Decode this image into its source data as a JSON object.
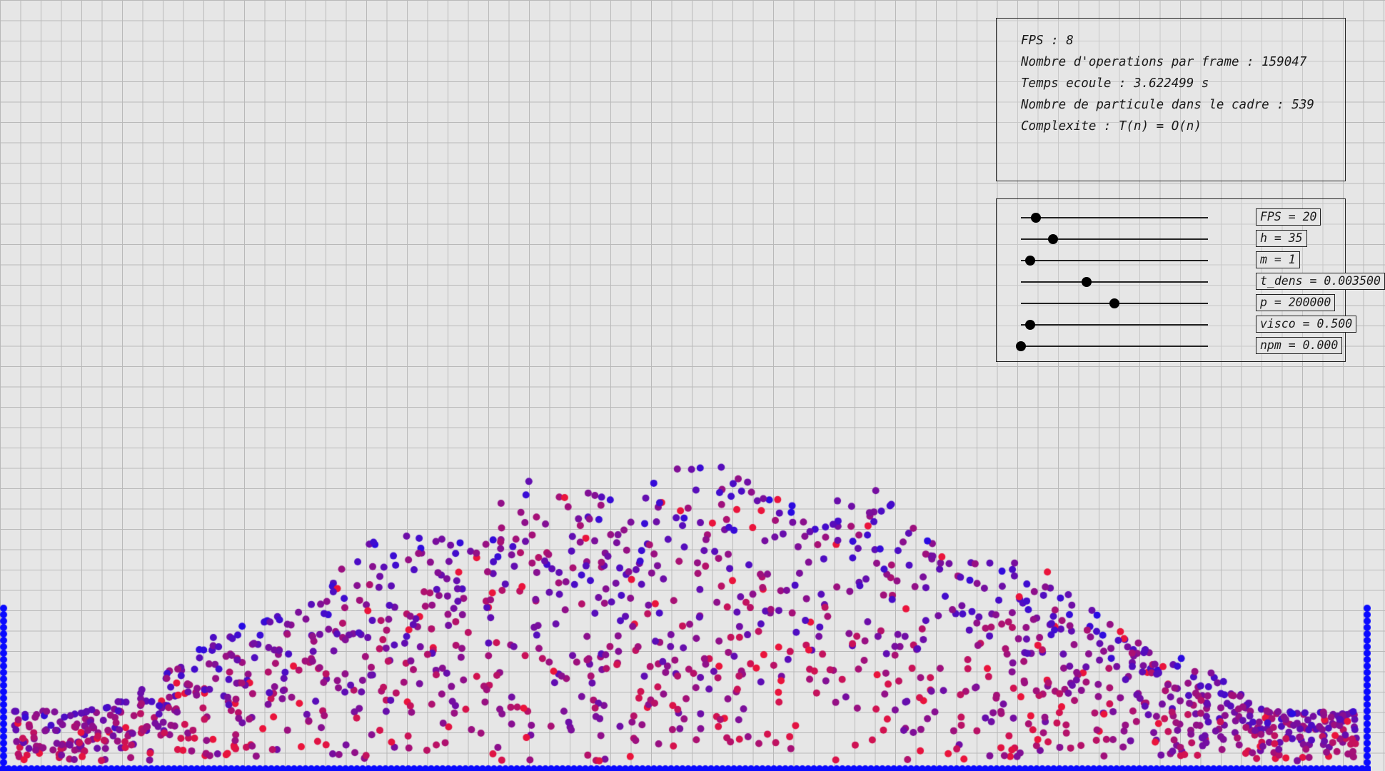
{
  "stats": {
    "fps": "FPS : 8",
    "operations": "Nombre d'operations par frame : 159047",
    "elapsed": "Temps ecoule : 3.622499 s",
    "particle_count": "Nombre de particule dans le cadre : 539",
    "complexity": "Complexite : T(n) = O(n)"
  },
  "sliders": [
    {
      "label": "FPS = 20",
      "level": 0.08
    },
    {
      "label": "h = 35",
      "level": 0.17
    },
    {
      "label": "m = 1",
      "level": 0.05
    },
    {
      "label": "t_dens = 0.003500",
      "level": 0.35
    },
    {
      "label": "p = 200000",
      "level": 0.5
    },
    {
      "label": "visco = 0.500",
      "level": 0.05
    },
    {
      "label": "npm = 0.000",
      "level": 0.0
    }
  ],
  "colors": {
    "background": "#e6e6e6",
    "grid": "#b9b9b9",
    "particle_low_density": "#1a1aff",
    "particle_high_density": "#ff0a0a",
    "boundary_particles": "#0a0aff"
  }
}
